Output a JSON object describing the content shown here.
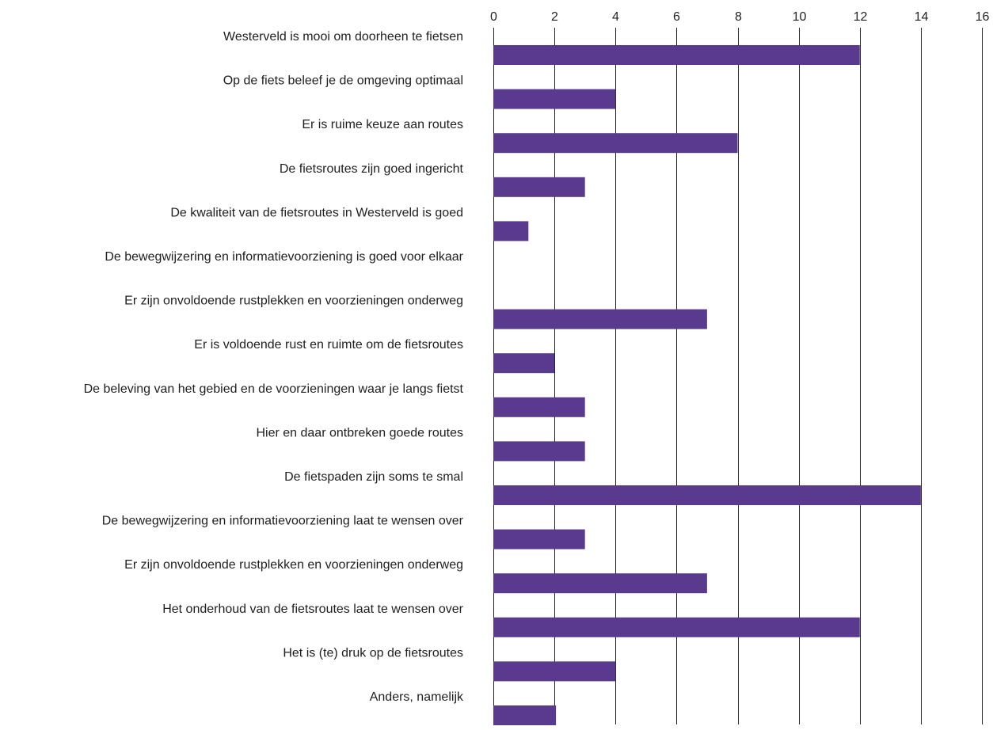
{
  "chart_data": {
    "type": "bar",
    "orientation": "horizontal",
    "title": "",
    "xlabel": "",
    "ylabel": "",
    "xlim": [
      0,
      16
    ],
    "x_ticks": [
      "0",
      "2",
      "4",
      "6",
      "8",
      "10",
      "12",
      "14",
      "16"
    ],
    "x_axis_position": "top",
    "grid": true,
    "bar_color": "#5a3a8e",
    "categories": [
      "Westerveld is mooi om doorheen te fietsen",
      "Op de fiets beleef je de omgeving optimaal",
      "Er is ruime keuze aan routes",
      "De fietsroutes zijn goed ingericht",
      "De kwaliteit van de fietsroutes in Westerveld is goed",
      "De bewegwijzering en informatievoorziening is goed voor elkaar",
      "Er zijn onvoldoende rustplekken en voorzieningen onderweg",
      "Er is voldoende rust en ruimte  om de fietsroutes",
      "De beleving van het gebied en de voorzieningen waar je langs fietst",
      "Hier en daar ontbreken goede routes",
      "De fietspaden zijn soms te smal",
      "De bewegwijzering en informatievoorziening laat te wensen over",
      "Er zijn onvoldoende rustplekken en voorzieningen onderweg",
      "Het onderhoud van de fietsroutes laat te wensen over",
      "Het is (te) druk op de fietsroutes",
      "Anders, namelijk"
    ],
    "values": [
      12,
      4,
      8,
      3,
      1.15,
      0,
      7,
      2,
      3,
      3,
      14,
      3,
      7,
      12,
      4,
      2.05
    ]
  }
}
